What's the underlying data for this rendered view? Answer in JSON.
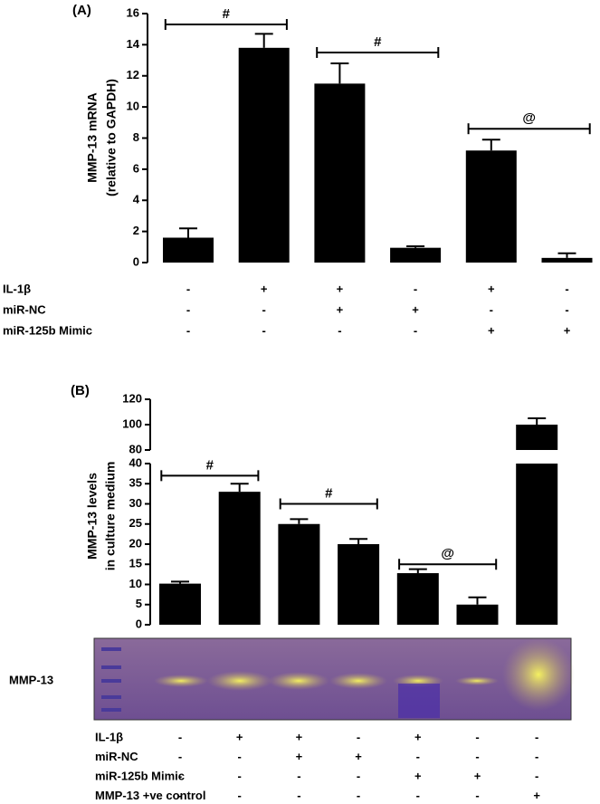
{
  "chart_data": [
    {
      "type": "bar",
      "panel": "(A)",
      "ylabel": [
        "MMP-13 mRNA",
        "(relative to GAPDH)"
      ],
      "values": [
        1.6,
        13.8,
        11.5,
        0.95,
        7.2,
        0.3
      ],
      "errors": [
        0.6,
        0.9,
        1.3,
        0.1,
        0.7,
        0.3
      ],
      "color": "#000000",
      "ylim": [
        0,
        16
      ],
      "yticks": [
        0,
        2,
        4,
        6,
        8,
        10,
        12,
        14,
        16
      ],
      "brackets": [
        {
          "label": "#",
          "from": 0,
          "to": 1,
          "y": 15.3
        },
        {
          "label": "#",
          "from": 2,
          "to": 3,
          "y": 13.5
        },
        {
          "label": "@",
          "from": 4,
          "to": 5,
          "y": 8.6
        }
      ],
      "conditions": [
        {
          "label": "IL-1β",
          "marks": [
            "-",
            "+",
            "+",
            "-",
            "+",
            "-"
          ]
        },
        {
          "label": "miR-NC",
          "marks": [
            "-",
            "-",
            "+",
            "+",
            "-",
            "-"
          ]
        },
        {
          "label": "miR-125b Mimic",
          "marks": [
            "-",
            "-",
            "-",
            "-",
            "+",
            "+"
          ]
        }
      ]
    },
    {
      "type": "bar",
      "panel": "(B)",
      "ylabel": [
        "MMP-13 levels",
        "in culture medium"
      ],
      "values": [
        10.2,
        33,
        25,
        20,
        12.8,
        5,
        100
      ],
      "errors": [
        0.5,
        2,
        1.2,
        1.3,
        1,
        1.8,
        5
      ],
      "color": "#000000",
      "ylim": [
        0,
        120
      ],
      "ybreak": [
        40,
        80
      ],
      "yticks": [
        0,
        5,
        10,
        15,
        20,
        25,
        30,
        35,
        40,
        80,
        100,
        120
      ],
      "brackets": [
        {
          "label": "#",
          "from": 0,
          "to": 1,
          "y": 37
        },
        {
          "label": "#",
          "from": 2,
          "to": 3,
          "y": 30
        },
        {
          "label": "@",
          "from": 4,
          "to": 5,
          "y": 15
        }
      ],
      "gel_label": "MMP-13",
      "conditions": [
        {
          "label": "IL-1β",
          "marks": [
            "-",
            "+",
            "+",
            "-",
            "+",
            "-",
            "-"
          ]
        },
        {
          "label": "miR-NC",
          "marks": [
            "-",
            "-",
            "+",
            "+",
            "-",
            "-",
            "-"
          ]
        },
        {
          "label": "miR-125b Mimic",
          "marks": [
            "-",
            "-",
            "-",
            "-",
            "+",
            "+",
            "-"
          ]
        },
        {
          "label": "MMP-13 +ve control",
          "marks": [
            "-",
            "-",
            "-",
            "-",
            "-",
            "-",
            "+"
          ]
        }
      ]
    }
  ]
}
